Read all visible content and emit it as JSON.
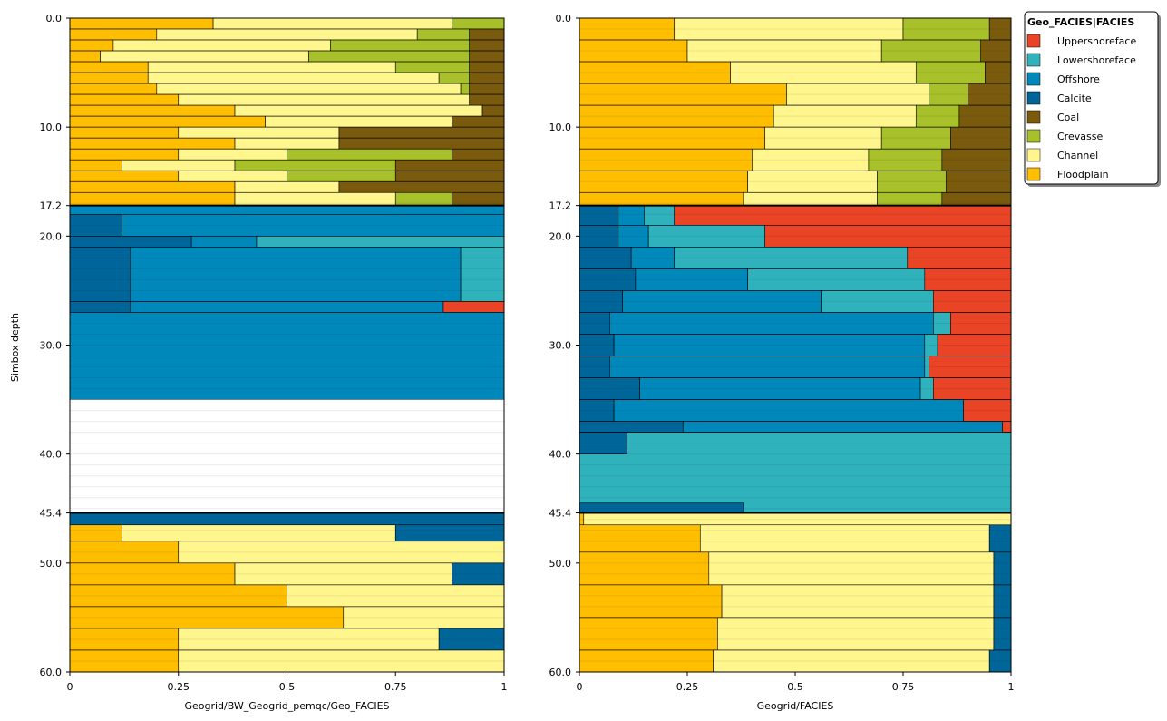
{
  "chart_data": {
    "type": "area",
    "y_axis_label": "Simbox depth",
    "y_ticks": [
      "0.0",
      "10.0",
      "17.2",
      "20.0",
      "30.0",
      "40.0",
      "45.4",
      "50.0",
      "60.0"
    ],
    "x_ticks": [
      "0",
      "0.25",
      "0.5",
      "0.75",
      "1"
    ],
    "legend": {
      "title": "Geo_FACIES|FACIES",
      "items": [
        {
          "name": "Uppershoreface",
          "color": "#e84425"
        },
        {
          "name": "Lowershoreface",
          "color": "#30b2bd"
        },
        {
          "name": "Offshore",
          "color": "#0088bb"
        },
        {
          "name": "Calcite",
          "color": "#006699"
        },
        {
          "name": "Coal",
          "color": "#7a5a0c"
        },
        {
          "name": "Crevasse",
          "color": "#a8c02a"
        },
        {
          "name": "Channel",
          "color": "#fff68e"
        },
        {
          "name": "Floodplain",
          "color": "#ffbe00"
        }
      ]
    },
    "zone_boundaries": [
      17.2,
      45.4
    ],
    "panels": [
      {
        "x_label": "Geogrid/BW_Geogrid_pemqc/Geo_FACIES",
        "layers": [
          {
            "y": [
              0,
              1
            ],
            "f": [
              0.33,
              0.88,
              1,
              0,
              0,
              0,
              0,
              0
            ]
          },
          {
            "y": [
              1,
              2
            ],
            "f": [
              0.2,
              0.8,
              0.92,
              0,
              0,
              0,
              0,
              0
            ]
          },
          {
            "y": [
              2,
              3
            ],
            "f": [
              0.1,
              0.6,
              0.92,
              0,
              0,
              0,
              0,
              0
            ]
          },
          {
            "y": [
              3,
              4
            ],
            "f": [
              0.07,
              0.55,
              0.92,
              0,
              0,
              0,
              0,
              0
            ]
          },
          {
            "y": [
              4,
              5
            ],
            "f": [
              0.18,
              0.75,
              0.92,
              0,
              0,
              0,
              0,
              0
            ]
          },
          {
            "y": [
              5,
              6
            ],
            "f": [
              0.18,
              0.85,
              0.92,
              0,
              0,
              0,
              0,
              0
            ]
          },
          {
            "y": [
              6,
              7
            ],
            "f": [
              0.2,
              0.9,
              0.92,
              0,
              0,
              0,
              0,
              0
            ]
          },
          {
            "y": [
              7,
              8
            ],
            "f": [
              0.25,
              0.92,
              0.92,
              0,
              0,
              0,
              0,
              0
            ]
          },
          {
            "y": [
              8,
              9
            ],
            "f": [
              0.38,
              0.95,
              0.95,
              0,
              0,
              0,
              0,
              0
            ]
          },
          {
            "y": [
              9,
              10
            ],
            "f": [
              0.45,
              0.88,
              0.88,
              0,
              0,
              0,
              0,
              0
            ]
          },
          {
            "y": [
              10,
              11
            ],
            "f": [
              0.25,
              0.62,
              0.62,
              0,
              0,
              0,
              0,
              0
            ]
          },
          {
            "y": [
              11,
              12
            ],
            "f": [
              0.38,
              0.62,
              0.62,
              0,
              0,
              0,
              0,
              0
            ]
          },
          {
            "y": [
              12,
              13
            ],
            "f": [
              0.25,
              0.5,
              0.88,
              0,
              0,
              0,
              0,
              0
            ]
          },
          {
            "y": [
              13,
              14
            ],
            "f": [
              0.12,
              0.38,
              0.75,
              0,
              0,
              0,
              0,
              0
            ]
          },
          {
            "y": [
              14,
              15
            ],
            "f": [
              0.25,
              0.5,
              0.75,
              0,
              0,
              0,
              0,
              0
            ]
          },
          {
            "y": [
              15,
              16
            ],
            "f": [
              0.38,
              0.62,
              0.62,
              0,
              0,
              0,
              0,
              0
            ]
          },
          {
            "y": [
              16,
              17.2
            ],
            "f": [
              0.38,
              0.75,
              0.88,
              0,
              0,
              0,
              0,
              0
            ]
          },
          {
            "y": [
              17.2,
              18
            ],
            "f": [
              0,
              0,
              0,
              1,
              0,
              0,
              0,
              0
            ]
          },
          {
            "y": [
              18,
              20
            ],
            "f": [
              0,
              0,
              0,
              0,
              0,
              0.12,
              0,
              0
            ]
          },
          {
            "y": [
              20,
              21
            ],
            "f": [
              0,
              0,
              0,
              0,
              0,
              0.28,
              0.43,
              0
            ]
          },
          {
            "y": [
              21,
              26
            ],
            "f": [
              0,
              0,
              0,
              0,
              0,
              0.14,
              0.9,
              0
            ]
          },
          {
            "y": [
              26,
              27
            ],
            "f": [
              0,
              0,
              0,
              0,
              0,
              0.14,
              0.86,
              0.72
            ]
          },
          {
            "y": [
              27,
              35
            ],
            "f": [
              0,
              0,
              0,
              0,
              0,
              0,
              1,
              0
            ]
          },
          {
            "y": [
              45.4,
              46.5
            ],
            "f": [
              0,
              0,
              0,
              0,
              0,
              1,
              0,
              0
            ]
          },
          {
            "y": [
              46.5,
              48
            ],
            "f": [
              0.12,
              0.75,
              1,
              0,
              0,
              0,
              0,
              0
            ]
          },
          {
            "y": [
              48,
              50
            ],
            "f": [
              0.25,
              1,
              1,
              0,
              0,
              0,
              0,
              0
            ]
          },
          {
            "y": [
              50,
              52
            ],
            "f": [
              0.38,
              0.88,
              1,
              0,
              0,
              0,
              0,
              0
            ]
          },
          {
            "y": [
              52,
              54
            ],
            "f": [
              0.5,
              1,
              1,
              0,
              0,
              0,
              0,
              0
            ]
          },
          {
            "y": [
              54,
              56
            ],
            "f": [
              0.63,
              1,
              1,
              0,
              0,
              0,
              0,
              0
            ]
          },
          {
            "y": [
              56,
              58
            ],
            "f": [
              0.25,
              0.85,
              1,
              0,
              0,
              0,
              0,
              0
            ]
          },
          {
            "y": [
              58,
              60
            ],
            "f": [
              0.25,
              1,
              1,
              0,
              0,
              0,
              0,
              0
            ]
          }
        ]
      },
      {
        "x_label": "Geogrid/FACIES",
        "layers": [
          {
            "y": [
              0,
              2
            ],
            "f": [
              0.22,
              0.75,
              0.95,
              1,
              0,
              0,
              0,
              0
            ]
          },
          {
            "y": [
              2,
              4
            ],
            "f": [
              0.25,
              0.7,
              0.93,
              1,
              0,
              0,
              0,
              0
            ]
          },
          {
            "y": [
              4,
              6
            ],
            "f": [
              0.35,
              0.78,
              0.94,
              1,
              0,
              0,
              0,
              0
            ]
          },
          {
            "y": [
              6,
              8
            ],
            "f": [
              0.48,
              0.81,
              0.9,
              1,
              0,
              0,
              0,
              0
            ]
          },
          {
            "y": [
              8,
              10
            ],
            "f": [
              0.45,
              0.78,
              0.88,
              1,
              0,
              0,
              0,
              0
            ]
          },
          {
            "y": [
              10,
              12
            ],
            "f": [
              0.43,
              0.7,
              0.86,
              1,
              0,
              0,
              0,
              0
            ]
          },
          {
            "y": [
              12,
              14
            ],
            "f": [
              0.4,
              0.67,
              0.84,
              1,
              0,
              0,
              0,
              0
            ]
          },
          {
            "y": [
              14,
              16
            ],
            "f": [
              0.39,
              0.69,
              0.85,
              1,
              0,
              0,
              0,
              0
            ]
          },
          {
            "y": [
              16,
              17.2
            ],
            "f": [
              0.38,
              0.69,
              0.84,
              1,
              0,
              0,
              0,
              0
            ]
          },
          {
            "y": [
              17.2,
              19
            ],
            "f": [
              0,
              0,
              0,
              0,
              0.22,
              0.15,
              0.09,
              0
            ]
          },
          {
            "y": [
              19,
              21
            ],
            "f": [
              0,
              0,
              0,
              0,
              0.43,
              0.16,
              0.09,
              0
            ]
          },
          {
            "y": [
              21,
              23
            ],
            "f": [
              0,
              0,
              0,
              0,
              0.76,
              0.22,
              0.12,
              0
            ]
          },
          {
            "y": [
              23,
              25
            ],
            "f": [
              0,
              0,
              0,
              0,
              0.8,
              0.39,
              0.13,
              0
            ]
          },
          {
            "y": [
              25,
              27
            ],
            "f": [
              0,
              0,
              0,
              0,
              0.82,
              0.56,
              0.1,
              0
            ]
          },
          {
            "y": [
              27,
              29
            ],
            "f": [
              0,
              0,
              0,
              0,
              0.86,
              0.82,
              0.07,
              0
            ]
          },
          {
            "y": [
              29,
              31
            ],
            "f": [
              0,
              0,
              0,
              0,
              0.83,
              0.8,
              0.08,
              0
            ]
          },
          {
            "y": [
              31,
              33
            ],
            "f": [
              0,
              0,
              0,
              0,
              0.81,
              0.8,
              0.07,
              0
            ]
          },
          {
            "y": [
              33,
              35
            ],
            "f": [
              0,
              0,
              0,
              0,
              0.82,
              0.79,
              0.14,
              0
            ]
          },
          {
            "y": [
              35,
              37
            ],
            "f": [
              0,
              0,
              0,
              0,
              0.89,
              0.89,
              0.08,
              0
            ]
          },
          {
            "y": [
              37,
              38
            ],
            "f": [
              0,
              0,
              0,
              0,
              0.98,
              0.98,
              0.24,
              0
            ]
          },
          {
            "y": [
              38,
              40
            ],
            "f": [
              0,
              0,
              0,
              0,
              0,
              0.11,
              0.11,
              0
            ]
          },
          {
            "y": [
              40,
              44.5
            ],
            "f": [
              0,
              0,
              0,
              0,
              0,
              0.0,
              0,
              0
            ]
          },
          {
            "y": [
              44.5,
              45.4
            ],
            "f": [
              0,
              0,
              0,
              0,
              0,
              0,
              0.38,
              0
            ]
          },
          {
            "y": [
              45.4,
              46.5
            ],
            "f": [
              0.01,
              1,
              1,
              0,
              0,
              0,
              0,
              0
            ]
          },
          {
            "y": [
              46.5,
              49
            ],
            "f": [
              0.28,
              0.95,
              1,
              0,
              0,
              0,
              0,
              0
            ]
          },
          {
            "y": [
              49,
              52
            ],
            "f": [
              0.3,
              0.96,
              1,
              0,
              0,
              0,
              0,
              0
            ]
          },
          {
            "y": [
              52,
              55
            ],
            "f": [
              0.33,
              0.96,
              1,
              0,
              0,
              0,
              0,
              0
            ]
          },
          {
            "y": [
              55,
              58
            ],
            "f": [
              0.32,
              0.96,
              1,
              0,
              0,
              0,
              0,
              0
            ]
          },
          {
            "y": [
              58,
              60
            ],
            "f": [
              0.31,
              0.95,
              1,
              0,
              0,
              0,
              0,
              0
            ]
          }
        ]
      }
    ]
  }
}
